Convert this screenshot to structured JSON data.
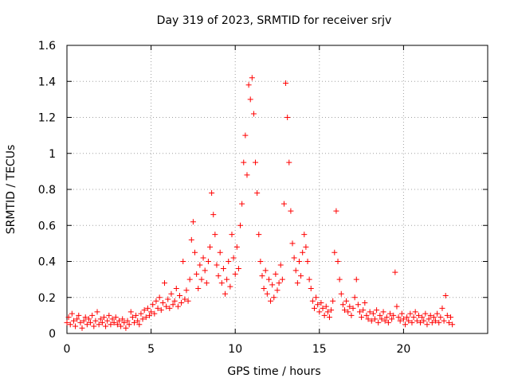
{
  "chart_data": {
    "type": "scatter",
    "title": "Day 319 of 2023, SRMTID for receiver srjv",
    "xlabel": "GPS time / hours",
    "ylabel": "SRMTID / TECUs",
    "xlim": [
      0,
      25
    ],
    "ylim": [
      0,
      1.6
    ],
    "grid": true,
    "x_ticks": [
      0,
      5,
      10,
      15,
      20
    ],
    "x_tick_labels": [
      "0",
      "5",
      "10",
      "15",
      "20"
    ],
    "y_ticks": [
      0,
      0.2,
      0.4,
      0.6,
      0.8,
      1,
      1.2,
      1.4,
      1.6
    ],
    "y_tick_labels": [
      "0",
      "0.2",
      "0.4",
      "0.6",
      "0.8",
      "1",
      "1.2",
      "1.4",
      "1.6"
    ],
    "marker": "plus",
    "series_color": "#ff0000",
    "series": [
      {
        "name": "srjv",
        "points": [
          [
            0.0,
            0.06
          ],
          [
            0.1,
            0.09
          ],
          [
            0.2,
            0.05
          ],
          [
            0.3,
            0.11
          ],
          [
            0.4,
            0.07
          ],
          [
            0.5,
            0.04
          ],
          [
            0.6,
            0.08
          ],
          [
            0.7,
            0.1
          ],
          [
            0.8,
            0.06
          ],
          [
            0.9,
            0.03
          ],
          [
            1.0,
            0.07
          ],
          [
            1.1,
            0.09
          ],
          [
            1.2,
            0.05
          ],
          [
            1.3,
            0.08
          ],
          [
            1.4,
            0.06
          ],
          [
            1.5,
            0.1
          ],
          [
            1.6,
            0.04
          ],
          [
            1.7,
            0.07
          ],
          [
            1.8,
            0.12
          ],
          [
            1.9,
            0.05
          ],
          [
            2.0,
            0.08
          ],
          [
            2.1,
            0.06
          ],
          [
            2.2,
            0.09
          ],
          [
            2.3,
            0.04
          ],
          [
            2.4,
            0.07
          ],
          [
            2.5,
            0.1
          ],
          [
            2.6,
            0.05
          ],
          [
            2.7,
            0.08
          ],
          [
            2.8,
            0.06
          ],
          [
            2.9,
            0.09
          ],
          [
            3.0,
            0.05
          ],
          [
            3.1,
            0.07
          ],
          [
            3.2,
            0.04
          ],
          [
            3.3,
            0.08
          ],
          [
            3.4,
            0.06
          ],
          [
            3.5,
            0.03
          ],
          [
            3.6,
            0.07
          ],
          [
            3.7,
            0.05
          ],
          [
            3.8,
            0.12
          ],
          [
            3.9,
            0.09
          ],
          [
            4.0,
            0.06
          ],
          [
            4.1,
            0.1
          ],
          [
            4.2,
            0.07
          ],
          [
            4.3,
            0.05
          ],
          [
            4.4,
            0.11
          ],
          [
            4.5,
            0.08
          ],
          [
            4.6,
            0.13
          ],
          [
            4.7,
            0.09
          ],
          [
            4.8,
            0.14
          ],
          [
            4.9,
            0.1
          ],
          [
            5.0,
            0.12
          ],
          [
            5.1,
            0.16
          ],
          [
            5.2,
            0.11
          ],
          [
            5.3,
            0.18
          ],
          [
            5.4,
            0.14
          ],
          [
            5.5,
            0.2
          ],
          [
            5.6,
            0.13
          ],
          [
            5.7,
            0.17
          ],
          [
            5.8,
            0.28
          ],
          [
            5.9,
            0.15
          ],
          [
            6.0,
            0.19
          ],
          [
            6.1,
            0.14
          ],
          [
            6.2,
            0.22
          ],
          [
            6.3,
            0.16
          ],
          [
            6.4,
            0.18
          ],
          [
            6.5,
            0.25
          ],
          [
            6.6,
            0.15
          ],
          [
            6.7,
            0.21
          ],
          [
            6.8,
            0.17
          ],
          [
            6.9,
            0.4
          ],
          [
            7.0,
            0.19
          ],
          [
            7.1,
            0.24
          ],
          [
            7.2,
            0.18
          ],
          [
            7.3,
            0.3
          ],
          [
            7.4,
            0.52
          ],
          [
            7.5,
            0.62
          ],
          [
            7.6,
            0.45
          ],
          [
            7.7,
            0.33
          ],
          [
            7.8,
            0.25
          ],
          [
            7.9,
            0.38
          ],
          [
            8.0,
            0.3
          ],
          [
            8.1,
            0.42
          ],
          [
            8.2,
            0.35
          ],
          [
            8.3,
            0.28
          ],
          [
            8.4,
            0.4
          ],
          [
            8.5,
            0.48
          ],
          [
            8.6,
            0.78
          ],
          [
            8.7,
            0.66
          ],
          [
            8.8,
            0.55
          ],
          [
            8.9,
            0.38
          ],
          [
            9.0,
            0.32
          ],
          [
            9.1,
            0.45
          ],
          [
            9.2,
            0.28
          ],
          [
            9.3,
            0.36
          ],
          [
            9.4,
            0.22
          ],
          [
            9.5,
            0.3
          ],
          [
            9.6,
            0.4
          ],
          [
            9.7,
            0.26
          ],
          [
            9.8,
            0.55
          ],
          [
            9.9,
            0.42
          ],
          [
            10.0,
            0.33
          ],
          [
            10.1,
            0.48
          ],
          [
            10.2,
            0.36
          ],
          [
            10.3,
            0.6
          ],
          [
            10.4,
            0.72
          ],
          [
            10.5,
            0.95
          ],
          [
            10.6,
            1.1
          ],
          [
            10.7,
            0.88
          ],
          [
            10.8,
            1.38
          ],
          [
            10.9,
            1.3
          ],
          [
            11.0,
            1.42
          ],
          [
            11.1,
            1.22
          ],
          [
            11.2,
            0.95
          ],
          [
            11.3,
            0.78
          ],
          [
            11.4,
            0.55
          ],
          [
            11.5,
            0.4
          ],
          [
            11.6,
            0.32
          ],
          [
            11.7,
            0.25
          ],
          [
            11.8,
            0.35
          ],
          [
            11.9,
            0.22
          ],
          [
            12.0,
            0.3
          ],
          [
            12.1,
            0.18
          ],
          [
            12.2,
            0.27
          ],
          [
            12.3,
            0.2
          ],
          [
            12.4,
            0.33
          ],
          [
            12.5,
            0.24
          ],
          [
            12.6,
            0.28
          ],
          [
            12.7,
            0.38
          ],
          [
            12.8,
            0.3
          ],
          [
            12.9,
            0.72
          ],
          [
            13.0,
            1.39
          ],
          [
            13.1,
            1.2
          ],
          [
            13.2,
            0.95
          ],
          [
            13.3,
            0.68
          ],
          [
            13.4,
            0.5
          ],
          [
            13.5,
            0.42
          ],
          [
            13.6,
            0.35
          ],
          [
            13.7,
            0.28
          ],
          [
            13.8,
            0.4
          ],
          [
            13.9,
            0.32
          ],
          [
            14.0,
            0.45
          ],
          [
            14.1,
            0.55
          ],
          [
            14.2,
            0.48
          ],
          [
            14.3,
            0.4
          ],
          [
            14.4,
            0.3
          ],
          [
            14.5,
            0.25
          ],
          [
            14.6,
            0.18
          ],
          [
            14.7,
            0.14
          ],
          [
            14.8,
            0.2
          ],
          [
            14.9,
            0.16
          ],
          [
            15.0,
            0.12
          ],
          [
            15.1,
            0.17
          ],
          [
            15.2,
            0.14
          ],
          [
            15.3,
            0.1
          ],
          [
            15.4,
            0.15
          ],
          [
            15.5,
            0.12
          ],
          [
            15.6,
            0.09
          ],
          [
            15.7,
            0.13
          ],
          [
            15.8,
            0.18
          ],
          [
            15.9,
            0.45
          ],
          [
            16.0,
            0.68
          ],
          [
            16.1,
            0.4
          ],
          [
            16.2,
            0.3
          ],
          [
            16.3,
            0.22
          ],
          [
            16.4,
            0.16
          ],
          [
            16.5,
            0.13
          ],
          [
            16.6,
            0.18
          ],
          [
            16.7,
            0.12
          ],
          [
            16.8,
            0.15
          ],
          [
            16.9,
            0.1
          ],
          [
            17.0,
            0.14
          ],
          [
            17.1,
            0.2
          ],
          [
            17.2,
            0.3
          ],
          [
            17.3,
            0.16
          ],
          [
            17.4,
            0.12
          ],
          [
            17.5,
            0.09
          ],
          [
            17.6,
            0.13
          ],
          [
            17.7,
            0.17
          ],
          [
            17.8,
            0.1
          ],
          [
            17.9,
            0.08
          ],
          [
            18.0,
            0.12
          ],
          [
            18.1,
            0.07
          ],
          [
            18.2,
            0.11
          ],
          [
            18.3,
            0.08
          ],
          [
            18.4,
            0.13
          ],
          [
            18.5,
            0.06
          ],
          [
            18.6,
            0.1
          ],
          [
            18.7,
            0.08
          ],
          [
            18.8,
            0.12
          ],
          [
            18.9,
            0.07
          ],
          [
            19.0,
            0.09
          ],
          [
            19.1,
            0.06
          ],
          [
            19.2,
            0.11
          ],
          [
            19.3,
            0.08
          ],
          [
            19.4,
            0.1
          ],
          [
            19.5,
            0.34
          ],
          [
            19.6,
            0.15
          ],
          [
            19.7,
            0.09
          ],
          [
            19.8,
            0.07
          ],
          [
            19.9,
            0.11
          ],
          [
            20.0,
            0.08
          ],
          [
            20.1,
            0.05
          ],
          [
            20.2,
            0.09
          ],
          [
            20.3,
            0.07
          ],
          [
            20.4,
            0.11
          ],
          [
            20.5,
            0.06
          ],
          [
            20.6,
            0.09
          ],
          [
            20.7,
            0.12
          ],
          [
            20.8,
            0.07
          ],
          [
            20.9,
            0.1
          ],
          [
            21.0,
            0.06
          ],
          [
            21.1,
            0.09
          ],
          [
            21.2,
            0.07
          ],
          [
            21.3,
            0.11
          ],
          [
            21.4,
            0.05
          ],
          [
            21.5,
            0.08
          ],
          [
            21.6,
            0.1
          ],
          [
            21.7,
            0.06
          ],
          [
            21.8,
            0.09
          ],
          [
            21.9,
            0.07
          ],
          [
            22.0,
            0.11
          ],
          [
            22.1,
            0.06
          ],
          [
            22.2,
            0.09
          ],
          [
            22.3,
            0.14
          ],
          [
            22.4,
            0.07
          ],
          [
            22.5,
            0.21
          ],
          [
            22.6,
            0.1
          ],
          [
            22.7,
            0.06
          ],
          [
            22.8,
            0.09
          ],
          [
            22.9,
            0.05
          ]
        ]
      }
    ]
  }
}
